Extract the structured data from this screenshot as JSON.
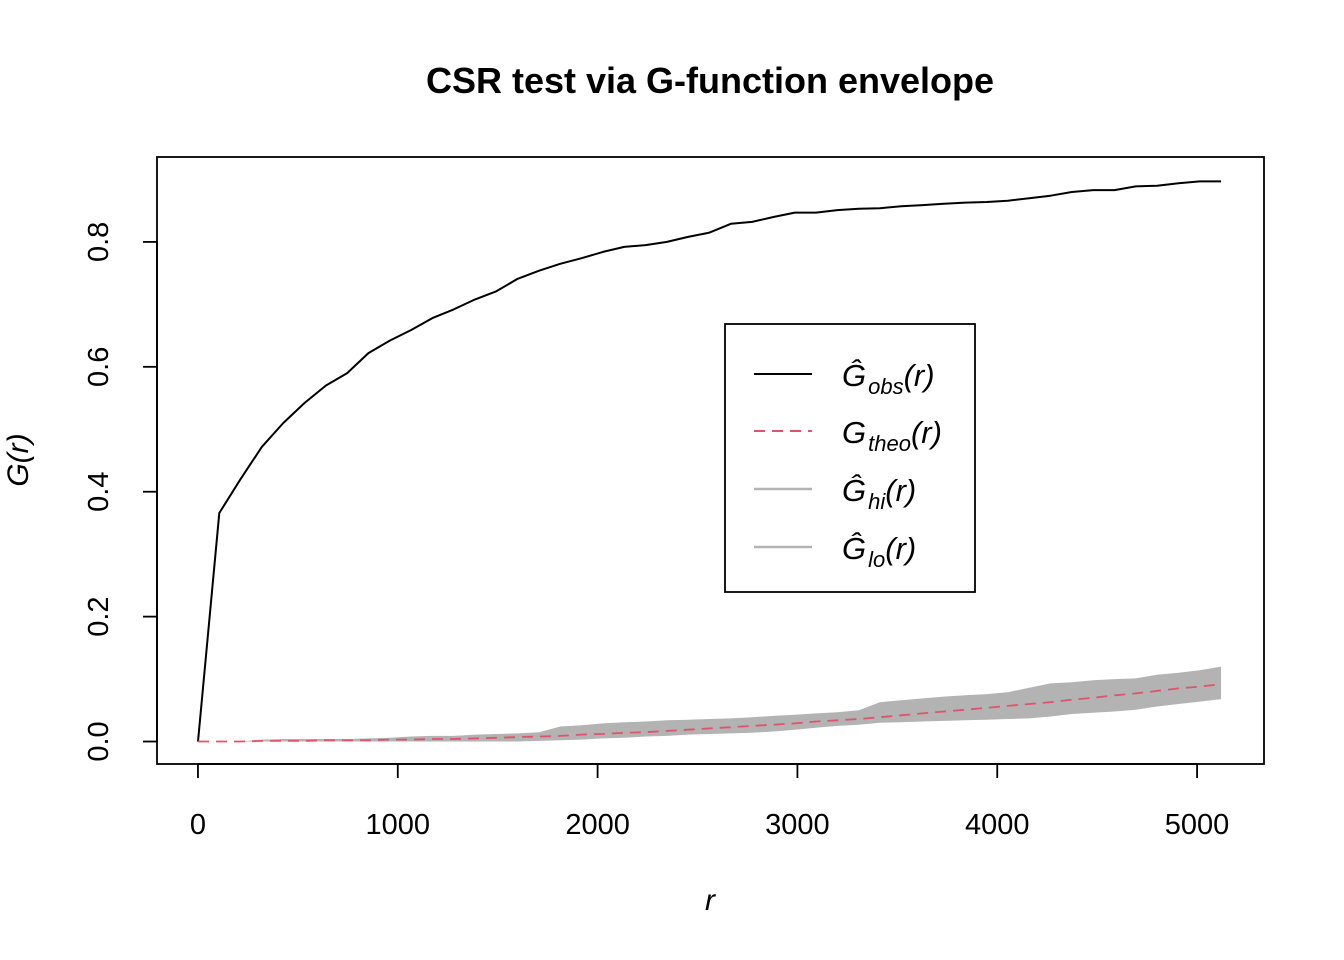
{
  "chart_data": {
    "type": "line",
    "title": "CSR test via G-function envelope",
    "xlabel": "r",
    "ylabel": "G(r)",
    "xlim": [
      -205,
      5335
    ],
    "ylim": [
      -0.036,
      0.936
    ],
    "x_ticks": [
      "0",
      "1000",
      "2000",
      "3000",
      "4000",
      "5000"
    ],
    "y_ticks": [
      "0.0",
      "0.2",
      "0.4",
      "0.6",
      "0.8"
    ],
    "legend_position": "center-right",
    "x": [
      0,
      107,
      213,
      320,
      427,
      533,
      640,
      747,
      853,
      960,
      1067,
      1173,
      1280,
      1387,
      1493,
      1600,
      1707,
      1813,
      1920,
      2027,
      2133,
      2240,
      2347,
      2453,
      2560,
      2667,
      2773,
      2880,
      2987,
      3093,
      3200,
      3307,
      3413,
      3520,
      3627,
      3733,
      3840,
      3947,
      4053,
      4160,
      4267,
      4373,
      4480,
      4587,
      4693,
      4800,
      4907,
      5013,
      5120
    ],
    "series": [
      {
        "name": "Ĝobs(r)",
        "legend_main": "Ĝ",
        "legend_sub": "obs",
        "legend_tail": "(r)",
        "style": "solid",
        "color": "#000000",
        "values": [
          0.0,
          0.366,
          0.42,
          0.472,
          0.51,
          0.542,
          0.57,
          0.59,
          0.622,
          0.642,
          0.659,
          0.678,
          0.692,
          0.708,
          0.721,
          0.741,
          0.754,
          0.765,
          0.774,
          0.784,
          0.792,
          0.795,
          0.8,
          0.808,
          0.815,
          0.829,
          0.832,
          0.84,
          0.847,
          0.847,
          0.851,
          0.853,
          0.854,
          0.857,
          0.859,
          0.861,
          0.863,
          0.864,
          0.866,
          0.87,
          0.874,
          0.88,
          0.883,
          0.883,
          0.889,
          0.89,
          0.894,
          0.897,
          0.897
        ]
      },
      {
        "name": "Gtheo(r)",
        "legend_main": "G",
        "legend_sub": "theo",
        "legend_tail": "(r)",
        "style": "dashed",
        "color": "#df536b",
        "values": [
          0.0,
          0.0,
          0.0,
          0.001,
          0.001,
          0.001,
          0.002,
          0.002,
          0.002,
          0.003,
          0.003,
          0.004,
          0.004,
          0.005,
          0.006,
          0.007,
          0.008,
          0.009,
          0.011,
          0.012,
          0.014,
          0.015,
          0.017,
          0.019,
          0.021,
          0.023,
          0.025,
          0.027,
          0.029,
          0.032,
          0.034,
          0.036,
          0.039,
          0.042,
          0.045,
          0.048,
          0.051,
          0.054,
          0.057,
          0.06,
          0.063,
          0.067,
          0.07,
          0.074,
          0.077,
          0.081,
          0.085,
          0.088,
          0.092
        ]
      },
      {
        "name": "Ĝhi(r)",
        "legend_main": "Ĝ",
        "legend_sub": "hi",
        "legend_tail": "(r)",
        "style": "band-upper",
        "color": "#b3b3b3",
        "values": [
          0.0,
          0.0,
          0.0,
          0.003,
          0.004,
          0.004,
          0.004,
          0.004,
          0.005,
          0.006,
          0.008,
          0.009,
          0.009,
          0.011,
          0.012,
          0.013,
          0.015,
          0.024,
          0.026,
          0.029,
          0.031,
          0.032,
          0.034,
          0.035,
          0.036,
          0.037,
          0.039,
          0.041,
          0.043,
          0.045,
          0.047,
          0.05,
          0.063,
          0.066,
          0.069,
          0.072,
          0.074,
          0.076,
          0.079,
          0.086,
          0.093,
          0.095,
          0.098,
          0.1,
          0.101,
          0.107,
          0.11,
          0.114,
          0.12
        ]
      },
      {
        "name": "Ĝlo(r)",
        "legend_main": "Ĝ",
        "legend_sub": "lo",
        "legend_tail": "(r)",
        "style": "band-lower",
        "color": "#b3b3b3",
        "values": [
          0.0,
          0.0,
          0.0,
          0.0,
          0.0,
          0.0,
          0.0,
          0.0,
          0.0,
          0.0,
          0.0,
          0.0,
          0.0,
          0.0,
          0.0,
          0.0,
          0.001,
          0.002,
          0.003,
          0.005,
          0.006,
          0.008,
          0.009,
          0.011,
          0.012,
          0.013,
          0.014,
          0.016,
          0.019,
          0.022,
          0.025,
          0.027,
          0.03,
          0.031,
          0.032,
          0.033,
          0.034,
          0.035,
          0.036,
          0.037,
          0.04,
          0.044,
          0.046,
          0.048,
          0.051,
          0.056,
          0.06,
          0.064,
          0.068
        ]
      }
    ]
  }
}
